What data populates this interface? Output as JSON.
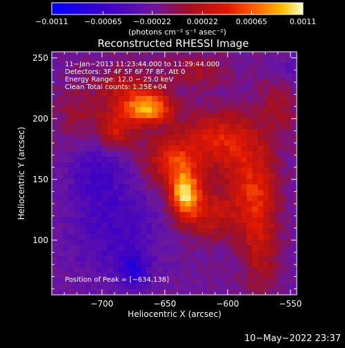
{
  "chart_data": {
    "type": "heatmap",
    "title": "Reconstructed RHESSI Image",
    "xlabel": "Heliocentric X (arcsec)",
    "ylabel": "Heliocentric Y (arcsec)",
    "xlim": [
      -740,
      -545
    ],
    "ylim": [
      55,
      255
    ],
    "x_ticks": [
      -700,
      -650,
      -600,
      -550
    ],
    "x_tick_labels": [
      "−700",
      "−650",
      "−600",
      "−550"
    ],
    "y_ticks": [
      100,
      150,
      200,
      250
    ],
    "y_tick_labels": [
      "100",
      "150",
      "200",
      "250"
    ],
    "colorbar": {
      "min": -0.0011,
      "max": 0.0011,
      "ticks": [
        -0.0011,
        -0.00065,
        -0.00022,
        0.00022,
        0.00065,
        0.0011
      ],
      "tick_labels": [
        "−0.0011",
        "−0.00065",
        "−0.00022",
        "0.00022",
        "0.00065",
        "0.0011"
      ],
      "units": "(photons cm⁻² s⁻¹ asec⁻²)"
    },
    "annotations": [
      "11−Jan−2013 11:23:44.000 to 11:29:44.000",
      "Detectors: 3F 4F 5F 6F 7F 8F, Att 0",
      "Energy Range: 12.0 − 25.0 keV",
      "Clean     Total counts: 1.25E+04"
    ],
    "peak_label": "Position of Peak = [−634,138]",
    "sources": [
      {
        "x": -634,
        "y": 138,
        "amplitude": 0.0011,
        "sigma_x": 9,
        "sigma_y": 14
      },
      {
        "x": -662,
        "y": 208,
        "amplitude": 0.00095,
        "sigma_x": 13,
        "sigma_y": 9
      },
      {
        "x": -680,
        "y": 222,
        "amplitude": 0.00045,
        "sigma_x": 16,
        "sigma_y": 14
      },
      {
        "x": -690,
        "y": 190,
        "amplitude": 0.0006,
        "sigma_x": 11,
        "sigma_y": 11
      },
      {
        "x": -610,
        "y": 185,
        "amplitude": 0.00055,
        "sigma_x": 20,
        "sigma_y": 15
      },
      {
        "x": -585,
        "y": 150,
        "amplitude": 0.0005,
        "sigma_x": 16,
        "sigma_y": 28
      },
      {
        "x": -575,
        "y": 105,
        "amplitude": 0.00045,
        "sigma_x": 10,
        "sigma_y": 35
      },
      {
        "x": -645,
        "y": 165,
        "amplitude": 0.0006,
        "sigma_x": 16,
        "sigma_y": 14
      },
      {
        "x": -615,
        "y": 120,
        "amplitude": 0.0004,
        "sigma_x": 14,
        "sigma_y": 14
      },
      {
        "x": -625,
        "y": 240,
        "amplitude": 0.0003,
        "sigma_x": 18,
        "sigma_y": 10
      },
      {
        "x": -720,
        "y": 205,
        "amplitude": 0.00025,
        "sigma_x": 12,
        "sigma_y": 20
      },
      {
        "x": -560,
        "y": 215,
        "amplitude": 0.0003,
        "sigma_x": 10,
        "sigma_y": 20
      },
      {
        "x": -690,
        "y": 110,
        "amplitude": -0.00035,
        "sigma_x": 25,
        "sigma_y": 30
      },
      {
        "x": -705,
        "y": 160,
        "amplitude": -0.0003,
        "sigma_x": 15,
        "sigma_y": 20
      },
      {
        "x": -675,
        "y": 75,
        "amplitude": -0.0005,
        "sigma_x": 8,
        "sigma_y": 10
      },
      {
        "x": -555,
        "y": 240,
        "amplitude": -0.0002,
        "sigma_x": 12,
        "sigma_y": 10
      }
    ],
    "background": -0.0002,
    "grid": false
  },
  "footer": {
    "timestamp": "10−May−2022 23:37"
  }
}
